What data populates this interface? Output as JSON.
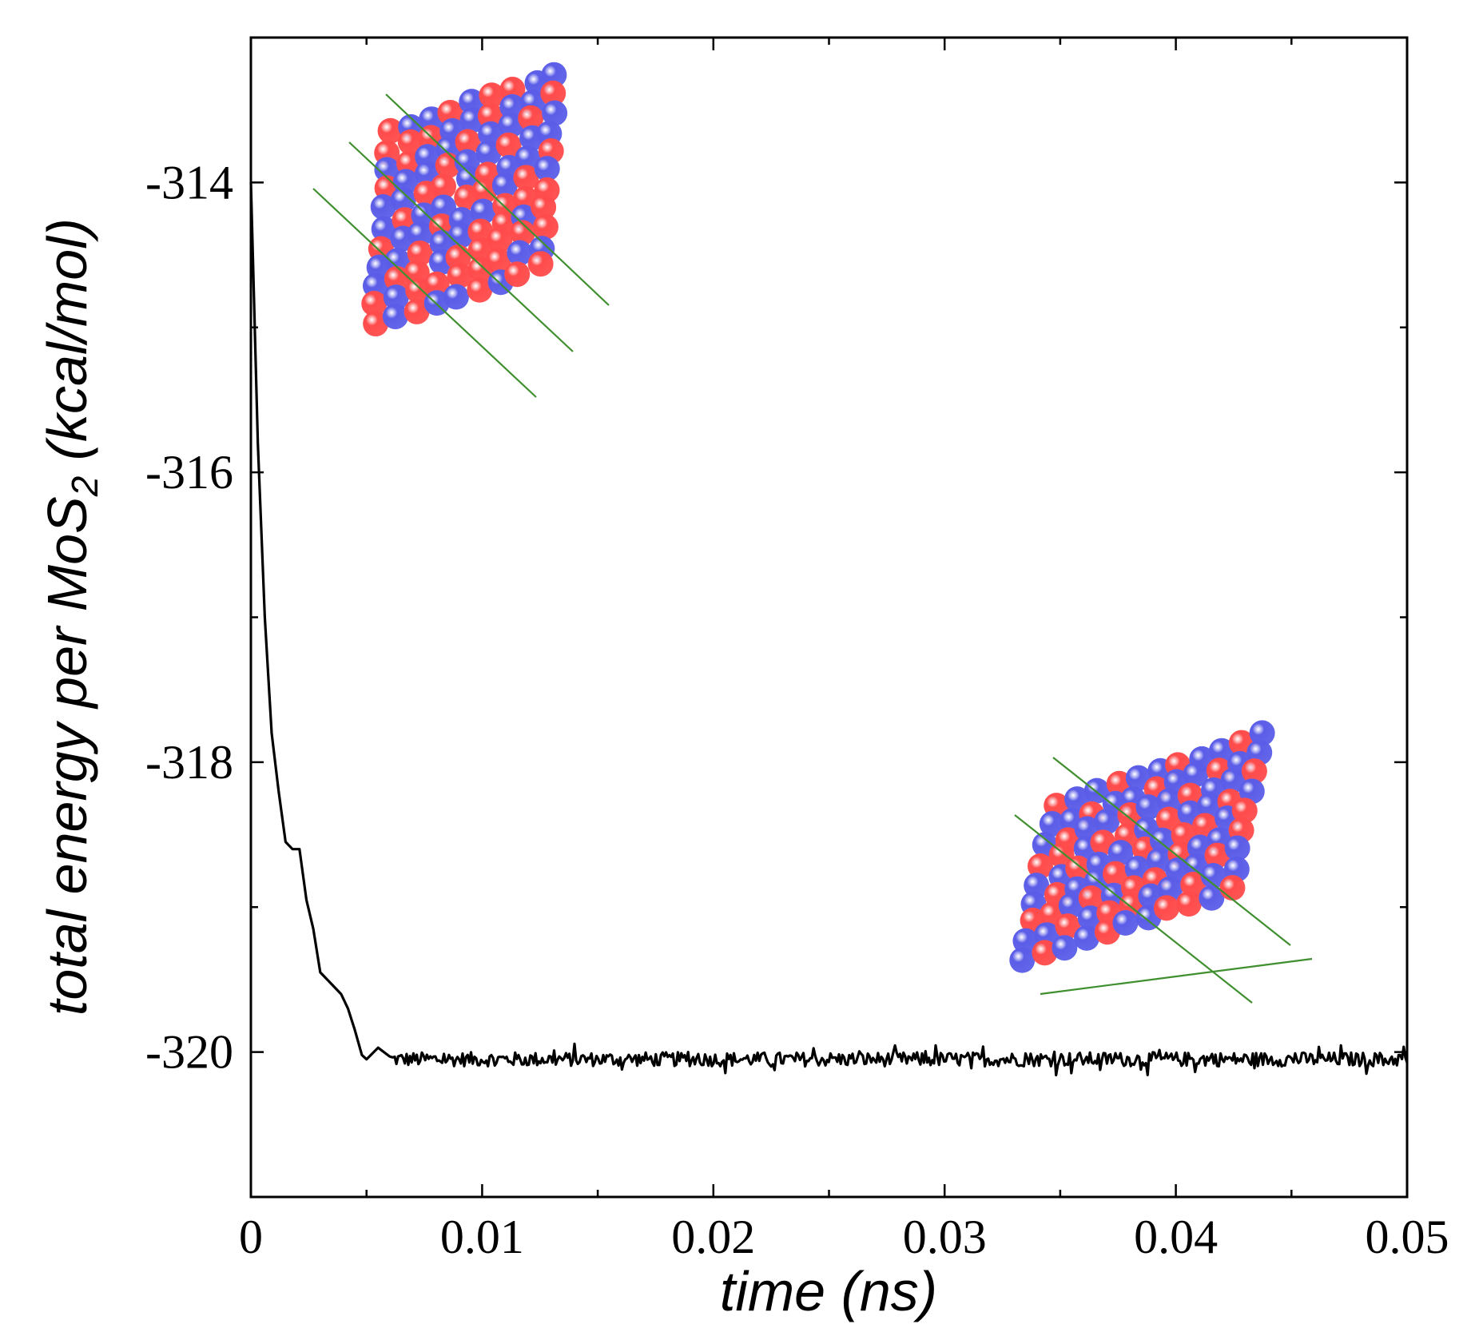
{
  "chart_data": {
    "type": "line",
    "title": "",
    "xlabel": "time (ns)",
    "ylabel_main": "total energy per MoS",
    "ylabel_sub": "2",
    "ylabel_unit": " (kcal/mol)",
    "xlim": [
      0,
      0.05
    ],
    "ylim": [
      -321,
      -313
    ],
    "x_ticks": [
      0,
      0.01,
      0.02,
      0.03,
      0.04,
      0.05
    ],
    "x_tick_labels": [
      "0",
      "0.01",
      "0.02",
      "0.03",
      "0.04",
      "0.05"
    ],
    "y_ticks": [
      -314,
      -316,
      -318,
      -320
    ],
    "y_tick_labels": [
      "-314",
      "-316",
      "-318",
      "-320"
    ],
    "grid": false,
    "series": [
      {
        "color": "#000000",
        "x": [
          0,
          0.0003,
          0.0006,
          0.0009,
          0.0012,
          0.0015,
          0.0018,
          0.0021,
          0.0024,
          0.0027,
          0.003,
          0.0033,
          0.0036,
          0.0039,
          0.0042,
          0.0045,
          0.0048,
          0.005,
          0.0055,
          0.006
        ],
        "y": [
          -314,
          -315.8,
          -317.0,
          -317.8,
          -318.2,
          -318.55,
          -318.6,
          -318.6,
          -318.95,
          -319.15,
          -319.45,
          -319.5,
          -319.55,
          -319.6,
          -319.7,
          -319.85,
          -320.02,
          -320.05,
          -319.97,
          -320.03
        ],
        "noise_start": 0.006,
        "noise_end": 0.05,
        "noise_points": 600,
        "noise_mean": -320.05,
        "noise_amplitude": 0.07
      }
    ],
    "insets": [
      {
        "name": "initial-cluster",
        "colors": [
          "#5b5de8",
          "#ff4b4b"
        ],
        "plane_color": "#3f8f2f"
      },
      {
        "name": "final-cluster",
        "colors": [
          "#5b5de8",
          "#ff4b4b"
        ],
        "plane_color": "#3f8f2f"
      }
    ]
  }
}
